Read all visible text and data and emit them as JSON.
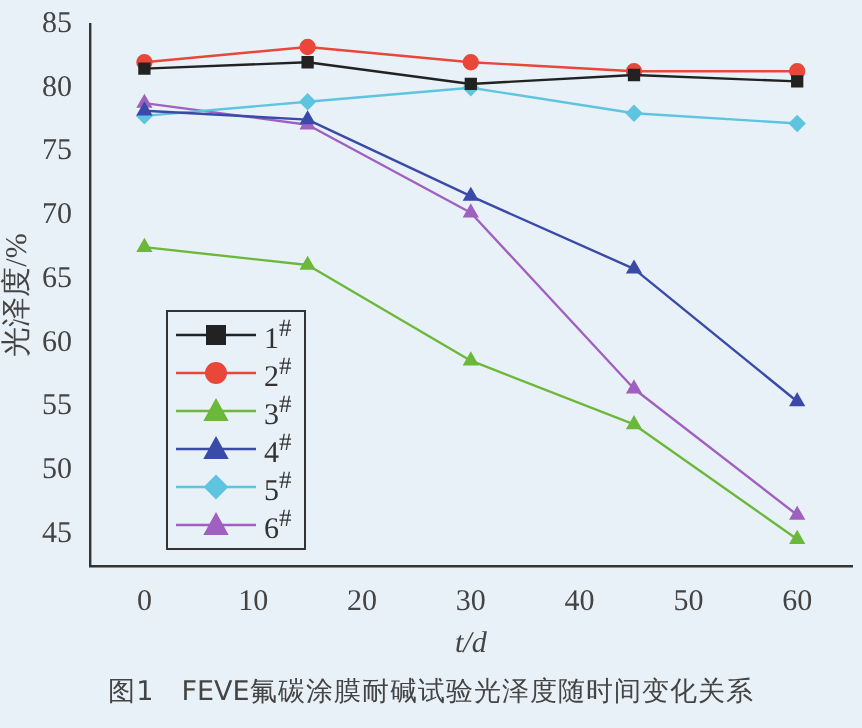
{
  "chart_data": {
    "type": "line",
    "xlabel": "t/d",
    "ylabel": "光泽度/%",
    "x": [
      0,
      15,
      30,
      45,
      60
    ],
    "xlim": [
      -5,
      65
    ],
    "xticks": [
      0,
      10,
      20,
      30,
      40,
      50,
      60
    ],
    "ylim": [
      42.5,
      85
    ],
    "yticks": [
      45,
      50,
      55,
      60,
      65,
      70,
      75,
      80,
      85
    ],
    "grid": false,
    "legend": "bottom left",
    "line_style": "solid",
    "series": [
      {
        "name": "1$^{#}$",
        "color": "#222222",
        "marker": "square",
        "values": [
          81.5,
          82,
          80.3,
          81,
          80.5
        ]
      },
      {
        "name": "2$^{#}$",
        "color": "#e8473a",
        "marker": "circle",
        "values": [
          82,
          83.2,
          82,
          81.3,
          81.3
        ]
      },
      {
        "name": "3$^{#}$",
        "color": "#6cb83a",
        "marker": "triangle",
        "values": [
          67.5,
          66.1,
          58.6,
          53.6,
          44.6
        ]
      },
      {
        "name": "4$^{#}$",
        "color": "#3a4aa8",
        "marker": "triangle",
        "values": [
          78.2,
          77.5,
          71.5,
          65.8,
          55.4
        ]
      },
      {
        "name": "5$^{#}$",
        "color": "#5ec4e0",
        "marker": "diamond",
        "values": [
          77.8,
          78.9,
          80,
          78,
          77.2
        ]
      },
      {
        "name": "6$^{#}$",
        "color": "#a060c0",
        "marker": "triangle",
        "values": [
          78.8,
          77.1,
          70.2,
          56.4,
          46.5
        ]
      }
    ],
    "annotations": [
      "图1　FEVE氟碳涂膜耐碱试验光泽度随时间变化关系"
    ]
  }
}
